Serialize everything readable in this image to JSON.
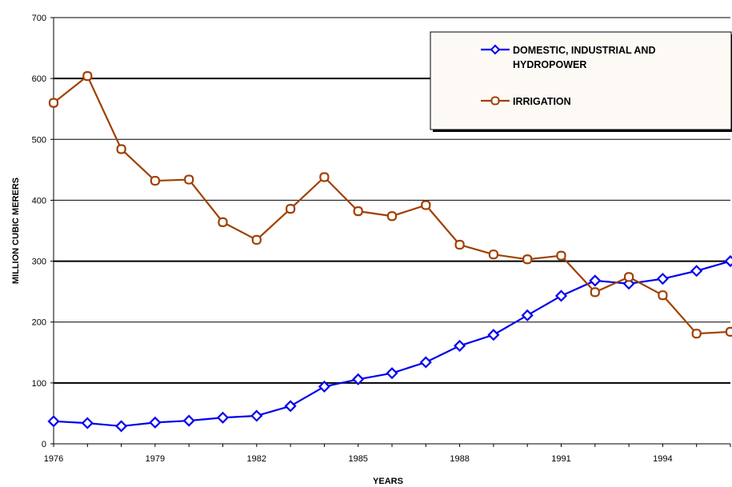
{
  "chart_data": {
    "type": "line",
    "title": "",
    "xlabel": "YEARS",
    "ylabel": "MILLION CUBIC MERERS",
    "x": [
      1976,
      1977,
      1978,
      1979,
      1980,
      1981,
      1982,
      1983,
      1984,
      1985,
      1986,
      1987,
      1988,
      1989,
      1990,
      1991,
      1992,
      1993,
      1994,
      1995,
      1996
    ],
    "xticks": [
      "1976",
      "1979",
      "1982",
      "1985",
      "1988",
      "1991",
      "1994"
    ],
    "yticks": [
      "0",
      "100",
      "200",
      "300",
      "400",
      "500",
      "600",
      "700"
    ],
    "xlim": [
      1976,
      1996
    ],
    "ylim": [
      0,
      700
    ],
    "grid": true,
    "legend_position": "top-right",
    "series": [
      {
        "name": "DOMESTIC, INDUSTRIAL AND HYDROPOWER",
        "color": "#0000ee",
        "marker": "diamond",
        "values": [
          37,
          34,
          29,
          35,
          38,
          43,
          46,
          62,
          94,
          106,
          116,
          134,
          161,
          179,
          211,
          243,
          268,
          263,
          271,
          284,
          300
        ]
      },
      {
        "name": "IRRIGATION",
        "color": "#a04000",
        "marker": "circle",
        "values": [
          560,
          604,
          484,
          432,
          434,
          364,
          335,
          386,
          438,
          382,
          374,
          392,
          327,
          311,
          303,
          309,
          249,
          274,
          244,
          181,
          184
        ]
      }
    ],
    "legend_lines": [
      [
        "DOMESTIC, INDUSTRIAL AND",
        "HYDROPOWER"
      ],
      [
        "IRRIGATION"
      ]
    ]
  }
}
